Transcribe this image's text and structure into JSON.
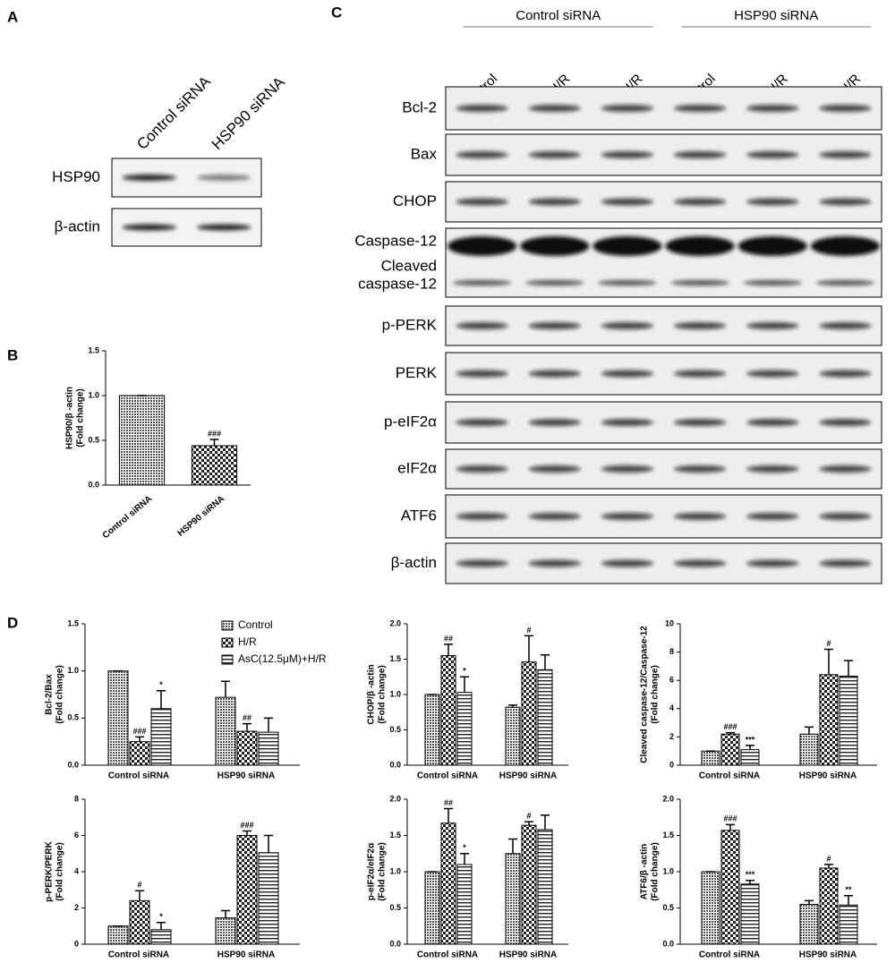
{
  "panel_labels": [
    "A",
    "B",
    "C",
    "D"
  ],
  "blot_a": {
    "columns": [
      "Control siRNA",
      "HSP90 siRNA"
    ],
    "rows": [
      "HSP90",
      "β-actin"
    ]
  },
  "blot_c": {
    "groups": [
      "Control siRNA",
      "HSP90 siRNA"
    ],
    "lanes": [
      "Control",
      "H/R",
      "AsC+H/R",
      "Control",
      "H/R",
      "AsC+H/R"
    ],
    "rows": [
      [
        "Bcl-2"
      ],
      [
        "Bax"
      ],
      [
        "CHOP"
      ],
      [
        "Caspase-12",
        "Cleaved",
        "caspase-12"
      ],
      [
        "p-PERK"
      ],
      [
        "PERK"
      ],
      [
        "p-eIF2α"
      ],
      [
        "eIF2α"
      ],
      [
        "ATF6"
      ],
      [
        "β-actin"
      ]
    ]
  },
  "chart_data": [
    {
      "type": "bar",
      "ylabel": [
        "HSP90/β -actin",
        "(Fold change)"
      ],
      "categories": [
        "Control siRNA",
        "HSP90 siRNA"
      ],
      "ylim": [
        0,
        1.5
      ],
      "yticks": [
        {
          "value": 0,
          "label": "0.0"
        },
        {
          "value": 0.5,
          "label": "0.5"
        },
        {
          "value": 1,
          "label": "1.0"
        },
        {
          "value": 1.5,
          "label": "1.5"
        }
      ],
      "series": [
        {
          "patterns": [
            "dots",
            "checker"
          ],
          "values": [
            1.0,
            0.44
          ],
          "errors": [
            0,
            0.07
          ],
          "annotations": [
            null,
            "###"
          ]
        }
      ]
    },
    {
      "type": "bar",
      "ylabel": [
        "Bcl-2/Bax",
        "(Fold change)"
      ],
      "categories": [
        "Control siRNA",
        "HSP90 siRNA"
      ],
      "legend": "top-right",
      "ylim": [
        0,
        1.5
      ],
      "yticks": [
        {
          "value": 0,
          "label": "0.0"
        },
        {
          "value": 0.5,
          "label": "0.5"
        },
        {
          "value": 1,
          "label": "1.0"
        },
        {
          "value": 1.5,
          "label": "1.5"
        }
      ],
      "series": [
        {
          "name": "Control",
          "pattern": "dots",
          "values": [
            1.0,
            0.72
          ],
          "errors": [
            0,
            0.17
          ],
          "annotations": [
            null,
            null
          ]
        },
        {
          "name": "H/R",
          "pattern": "checker",
          "values": [
            0.25,
            0.36
          ],
          "errors": [
            0.05,
            0.08
          ],
          "annotations": [
            "###",
            "##"
          ]
        },
        {
          "name": "AsC(12.5μM)+H/R",
          "pattern": "stripes",
          "values": [
            0.6,
            0.35
          ],
          "errors": [
            0.19,
            0.15
          ],
          "annotations": [
            "*",
            null
          ]
        }
      ]
    },
    {
      "type": "bar",
      "ylabel": [
        "CHOP/β -actin",
        "(Fold change)"
      ],
      "categories": [
        "Control siRNA",
        "HSP90 siRNA"
      ],
      "ylim": [
        0,
        2
      ],
      "yticks": [
        {
          "value": 0,
          "label": "0.0"
        },
        {
          "value": 0.5,
          "label": "0.5"
        },
        {
          "value": 1,
          "label": "1.0"
        },
        {
          "value": 1.5,
          "label": "1.5"
        },
        {
          "value": 2,
          "label": "2.0"
        }
      ],
      "series": [
        {
          "pattern": "dots",
          "values": [
            1.0,
            0.82
          ],
          "errors": [
            0,
            0.03
          ],
          "annotations": [
            null,
            null
          ]
        },
        {
          "pattern": "checker",
          "values": [
            1.55,
            1.46
          ],
          "errors": [
            0.16,
            0.37
          ],
          "annotations": [
            "##",
            "#"
          ]
        },
        {
          "pattern": "stripes",
          "values": [
            1.03,
            1.35
          ],
          "errors": [
            0.22,
            0.21
          ],
          "annotations": [
            "*",
            null
          ]
        }
      ]
    },
    {
      "type": "bar",
      "ylabel": [
        "Cleaved caspase-12/Caspase-12",
        "(Fold change)"
      ],
      "categories": [
        "Control siRNA",
        "HSP90 siRNA"
      ],
      "ylim": [
        0,
        10
      ],
      "yticks": [
        0,
        2,
        4,
        6,
        8,
        10
      ],
      "series": [
        {
          "pattern": "dots",
          "values": [
            1.0,
            2.2
          ],
          "errors": [
            0,
            0.5
          ],
          "annotations": [
            null,
            null
          ]
        },
        {
          "pattern": "checker",
          "values": [
            2.2,
            6.4
          ],
          "errors": [
            0.1,
            1.8
          ],
          "annotations": [
            "###",
            "#"
          ]
        },
        {
          "pattern": "stripes",
          "values": [
            1.1,
            6.3
          ],
          "errors": [
            0.3,
            1.1
          ],
          "annotations": [
            "***",
            null
          ]
        }
      ]
    },
    {
      "type": "bar",
      "ylabel": [
        "p-PERK/PERK",
        "(Fold change)"
      ],
      "categories": [
        "Control siRNA",
        "HSP90 siRNA"
      ],
      "ylim": [
        0,
        8
      ],
      "yticks": [
        0,
        2,
        4,
        6,
        8
      ],
      "series": [
        {
          "pattern": "dots",
          "values": [
            1.0,
            1.45
          ],
          "errors": [
            0,
            0.4
          ],
          "annotations": [
            null,
            null
          ]
        },
        {
          "pattern": "checker",
          "values": [
            2.4,
            6.0
          ],
          "errors": [
            0.55,
            0.25
          ],
          "annotations": [
            "#",
            "###"
          ]
        },
        {
          "pattern": "stripes",
          "values": [
            0.8,
            5.05
          ],
          "errors": [
            0.4,
            0.95
          ],
          "annotations": [
            "*",
            null
          ]
        }
      ]
    },
    {
      "type": "bar",
      "ylabel": [
        "p-eIF2α/eIF2α",
        "(Fold change)"
      ],
      "categories": [
        "Control siRNA",
        "HSP90 siRNA"
      ],
      "ylim": [
        0,
        2
      ],
      "yticks": [
        {
          "value": 0,
          "label": "0.0"
        },
        {
          "value": 0.5,
          "label": "0.5"
        },
        {
          "value": 1,
          "label": "1.0"
        },
        {
          "value": 1.5,
          "label": "1.5"
        },
        {
          "value": 2,
          "label": "2.0"
        }
      ],
      "series": [
        {
          "pattern": "dots",
          "values": [
            1.0,
            1.25
          ],
          "errors": [
            0,
            0.2
          ],
          "annotations": [
            null,
            null
          ]
        },
        {
          "pattern": "checker",
          "values": [
            1.67,
            1.64
          ],
          "errors": [
            0.2,
            0.05
          ],
          "annotations": [
            "##",
            "#"
          ]
        },
        {
          "pattern": "stripes",
          "values": [
            1.1,
            1.58
          ],
          "errors": [
            0.15,
            0.2
          ],
          "annotations": [
            "*",
            null
          ]
        }
      ]
    },
    {
      "type": "bar",
      "ylabel": [
        "ATF6/β -actin",
        "(Fold change)"
      ],
      "categories": [
        "Control siRNA",
        "HSP90 siRNA"
      ],
      "ylim": [
        0,
        2
      ],
      "yticks": [
        {
          "value": 0,
          "label": "0.0"
        },
        {
          "value": 0.5,
          "label": "0.5"
        },
        {
          "value": 1,
          "label": "1.0"
        },
        {
          "value": 1.5,
          "label": "1.5"
        },
        {
          "value": 2,
          "label": "2.0"
        }
      ],
      "series": [
        {
          "pattern": "dots",
          "values": [
            1.0,
            0.55
          ],
          "errors": [
            0,
            0.05
          ],
          "annotations": [
            null,
            null
          ]
        },
        {
          "pattern": "checker",
          "values": [
            1.57,
            1.05
          ],
          "errors": [
            0.08,
            0.05
          ],
          "annotations": [
            "###",
            "#"
          ]
        },
        {
          "pattern": "stripes",
          "values": [
            0.83,
            0.54
          ],
          "errors": [
            0.05,
            0.13
          ],
          "annotations": [
            "***",
            "**"
          ]
        }
      ]
    }
  ]
}
